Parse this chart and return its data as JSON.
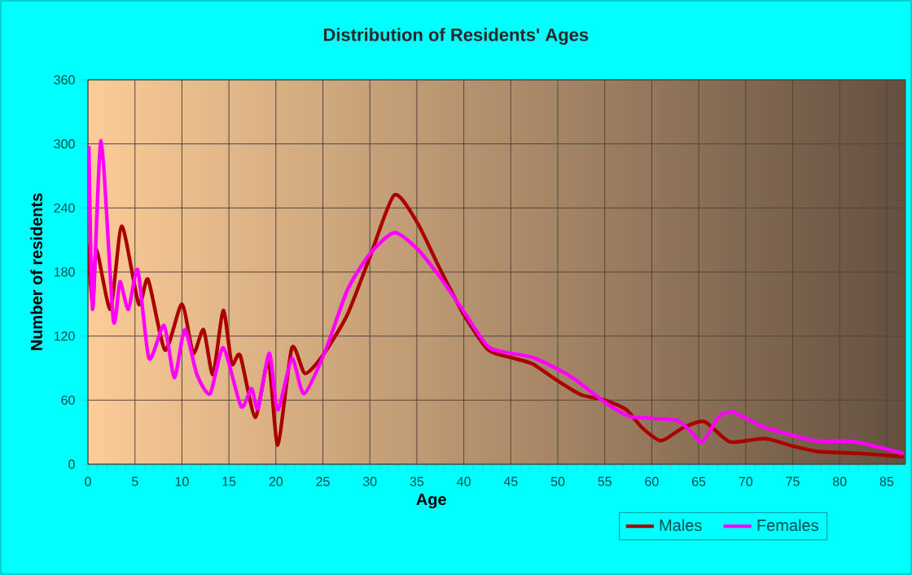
{
  "chart_data": {
    "type": "line",
    "title": "Distribution of Residents' Ages",
    "xlabel": "Age",
    "ylabel": "Number of residents",
    "xlim": [
      0,
      87
    ],
    "xticks": [
      0,
      5,
      10,
      15,
      20,
      25,
      30,
      35,
      40,
      45,
      50,
      55,
      60,
      65,
      70,
      75,
      80,
      85
    ],
    "ylim": [
      0,
      360
    ],
    "yticks": [
      0,
      60,
      120,
      180,
      240,
      300,
      360
    ],
    "grid": true,
    "legend": "bottom right",
    "marker": "none",
    "line_style": "solid",
    "series": [
      {
        "name": "Males",
        "color": "#aa0000",
        "x": [
          0,
          0.5,
          0.9,
          2.4,
          3.6,
          5.4,
          6.4,
          8.2,
          10,
          11.2,
          12.3,
          13.3,
          14.4,
          15.3,
          16.2,
          17.8,
          19.2,
          20.2,
          21.7,
          23.1,
          25,
          27.6,
          30,
          32.6,
          35,
          37.4,
          40,
          42.6,
          45,
          47.3,
          50,
          52.5,
          55,
          57.3,
          59,
          61,
          63.3,
          65.6,
          68.3,
          72,
          75,
          77.6,
          82.2,
          86.8
        ],
        "values": [
          206,
          148,
          201,
          145,
          223,
          150,
          173,
          107,
          150,
          104,
          126,
          84,
          144,
          94,
          102,
          44,
          97,
          18,
          109,
          85,
          102,
          140,
          194,
          252,
          227,
          184,
          140,
          107,
          100,
          94,
          78,
          65,
          60,
          51,
          34,
          22,
          34,
          40,
          21,
          24,
          17,
          12,
          10,
          7
        ]
      },
      {
        "name": "Females",
        "color": "#ff00ff",
        "x": [
          0.1,
          0.5,
          1.4,
          2.7,
          3.4,
          4.3,
          5.3,
          6.5,
          8.1,
          9.2,
          10.3,
          11.6,
          13,
          14.4,
          16.3,
          17.4,
          18.1,
          19.3,
          20.2,
          21.7,
          23,
          25.3,
          27.6,
          30,
          32.6,
          35,
          37.4,
          40,
          42.6,
          45,
          47.3,
          50,
          51.9,
          55,
          57.6,
          60,
          62.7,
          64.1,
          65.4,
          67.1,
          68.5,
          70.5,
          72.2,
          77.4,
          81.6,
          86.8
        ],
        "values": [
          298,
          145,
          303,
          135,
          171,
          145,
          182,
          99,
          130,
          81,
          126,
          84,
          66,
          109,
          54,
          71,
          52,
          104,
          51,
          99,
          66,
          107,
          163,
          197,
          217,
          202,
          176,
          143,
          110,
          104,
          100,
          89,
          79,
          58,
          45,
          43,
          41,
          31,
          21,
          44,
          49,
          41,
          34,
          22,
          21,
          10
        ]
      }
    ]
  }
}
